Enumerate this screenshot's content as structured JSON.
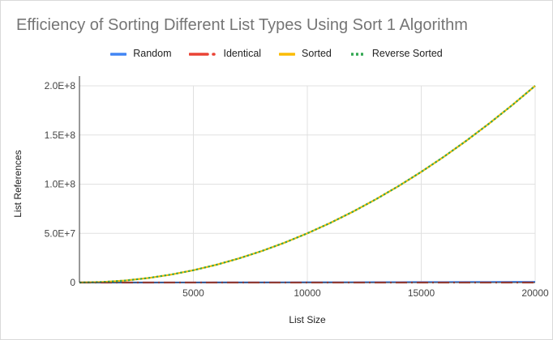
{
  "chart_data": {
    "type": "line",
    "title": "Efficiency of Sorting Different List Types Using Sort 1 Algorithm",
    "xlabel": "List Size",
    "ylabel": "List References",
    "xlim": [
      0,
      20000
    ],
    "ylim": [
      0,
      200000000
    ],
    "xticks": [
      5000,
      10000,
      15000,
      20000
    ],
    "xtick_labels": [
      "5000",
      "10000",
      "15000",
      "20000"
    ],
    "yticks": [
      0,
      50000000,
      100000000,
      150000000,
      200000000
    ],
    "ytick_labels": [
      "0",
      "5.0E+7",
      "1.0E+8",
      "1.5E+8",
      "2.0E+8"
    ],
    "grid": true,
    "legend_position": "top-center",
    "x": [
      0,
      1000,
      2000,
      3000,
      4000,
      5000,
      6000,
      7000,
      8000,
      9000,
      10000,
      11000,
      12000,
      13000,
      14000,
      15000,
      16000,
      17000,
      18000,
      19000,
      20000
    ],
    "series": [
      {
        "name": "Random",
        "color": "#4285f4",
        "style": "solid",
        "values": [
          0,
          5000,
          15000,
          25000,
          40000,
          60000,
          80000,
          100000,
          130000,
          160000,
          200000,
          230000,
          270000,
          310000,
          350000,
          400000,
          450000,
          500000,
          560000,
          620000,
          680000
        ]
      },
      {
        "name": "Identical",
        "color": "#ea4335",
        "style": "dash-dot",
        "values": [
          0,
          1000,
          2000,
          3000,
          4000,
          5000,
          6000,
          7000,
          8000,
          9000,
          10000,
          11000,
          12000,
          13000,
          14000,
          15000,
          16000,
          17000,
          18000,
          19000,
          20000
        ]
      },
      {
        "name": "Sorted",
        "color": "#fbbc04",
        "style": "solid",
        "values": [
          0,
          500000,
          2000000,
          4500000,
          8000000,
          12500000,
          18000000,
          24500000,
          32000000,
          40500000,
          50000000,
          60500000,
          72000000,
          84500000,
          98000000,
          112500000,
          128000000,
          144500000,
          162000000,
          180500000,
          200000000
        ]
      },
      {
        "name": "Reverse Sorted",
        "color": "#34a853",
        "style": "dotted",
        "values": [
          0,
          500000,
          2000000,
          4500000,
          8000000,
          12500000,
          18000000,
          24500000,
          32000000,
          40500000,
          50000000,
          60500000,
          72000000,
          84500000,
          98000000,
          112500000,
          128000000,
          144500000,
          162000000,
          180500000,
          200000000
        ]
      }
    ]
  }
}
